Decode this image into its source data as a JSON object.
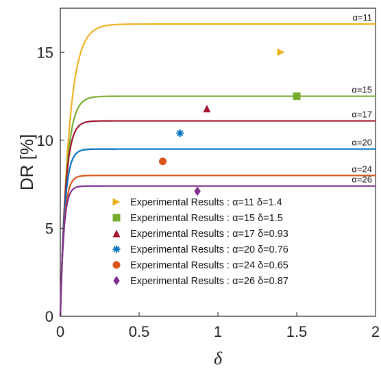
{
  "chart_data": {
    "type": "line",
    "xlabel": "δ",
    "ylabel": "DR [%]",
    "xlim": [
      0,
      2
    ],
    "ylim": [
      0,
      17.5
    ],
    "xticks": [
      0,
      0.5,
      1,
      1.5,
      2
    ],
    "xtick_labels": [
      "0",
      "0.5",
      "1",
      "1.5",
      "2"
    ],
    "yticks": [
      0,
      5,
      10,
      15
    ],
    "ytick_labels": [
      "0",
      "5",
      "10",
      "15"
    ],
    "grid": false,
    "legend_position": "bottom-right",
    "series": [
      {
        "name": "α=11",
        "label": "α=11",
        "plateau": 16.6,
        "rate": 18,
        "color": "#EDB120"
      },
      {
        "name": "α=15",
        "label": "α=15",
        "plateau": 12.5,
        "rate": 26,
        "color": "#77AC30"
      },
      {
        "name": "α=17",
        "label": "α=17",
        "plateau": 11.1,
        "rate": 31,
        "color": "#A2142F"
      },
      {
        "name": "α=20",
        "label": "α=20",
        "plateau": 9.5,
        "rate": 36,
        "color": "#0072BD"
      },
      {
        "name": "α=24",
        "label": "α=24",
        "plateau": 8.0,
        "rate": 42,
        "color": "#D95319"
      },
      {
        "name": "α=26",
        "label": "α=26",
        "plateau": 7.4,
        "rate": 46,
        "color": "#7E2F8E"
      }
    ],
    "experimental": [
      {
        "label": "Experimental Results : α=11 δ=1.4",
        "x": 1.4,
        "y": 15.0,
        "marker": "triangle-right",
        "color": "#EDB120"
      },
      {
        "label": "Experimental Results : α=15 δ=1.5",
        "x": 1.5,
        "y": 12.5,
        "marker": "square",
        "color": "#77AC30"
      },
      {
        "label": "Experimental Results : α=17 δ=0.93",
        "x": 0.93,
        "y": 11.8,
        "marker": "triangle-up",
        "color": "#A2142F"
      },
      {
        "label": "Experimental Results : α=20 δ=0.76",
        "x": 0.76,
        "y": 10.4,
        "marker": "asterisk",
        "color": "#0072BD"
      },
      {
        "label": "Experimental Results : α=24 δ=0.65",
        "x": 0.65,
        "y": 8.8,
        "marker": "circle",
        "color": "#D95319"
      },
      {
        "label": "Experimental Results : α=26 δ=0.87",
        "x": 0.87,
        "y": 7.1,
        "marker": "diamond",
        "color": "#7E2F8E"
      }
    ]
  }
}
